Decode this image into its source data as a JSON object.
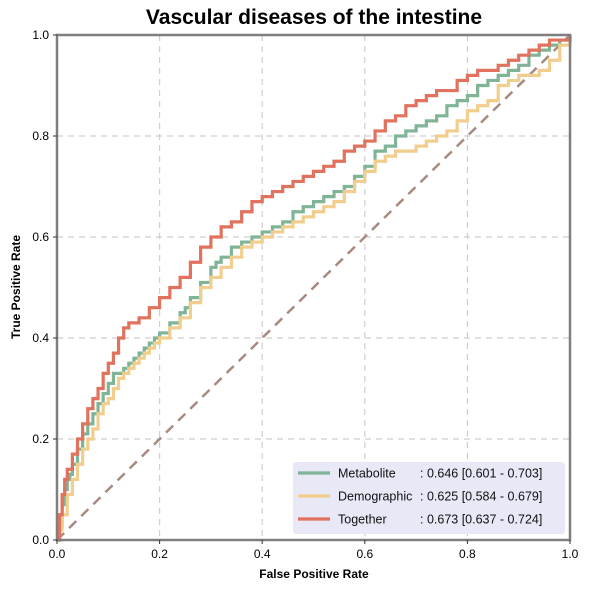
{
  "chart_data": {
    "type": "line",
    "title": "Vascular diseases of the intestine",
    "xlabel": "False Positive Rate",
    "ylabel": "True Positive Rate",
    "xlim": [
      0,
      1
    ],
    "ylim": [
      0,
      1
    ],
    "xticks": [
      "0.0",
      "0.2",
      "0.4",
      "0.6",
      "0.8",
      "1.0"
    ],
    "yticks": [
      "0.0",
      "0.2",
      "0.4",
      "0.6",
      "0.8",
      "1.0"
    ],
    "grid": true,
    "legend_position": "bottom-right",
    "series": [
      {
        "name": "Metabolite",
        "legend_name": "Metabolite     ",
        "legend_auc": ": 0.646 [0.601 - 0.703]",
        "color": "#7fb596",
        "x": [
          0,
          0.005,
          0.01,
          0.015,
          0.02,
          0.025,
          0.03,
          0.04,
          0.05,
          0.06,
          0.07,
          0.08,
          0.09,
          0.1,
          0.11,
          0.12,
          0.13,
          0.14,
          0.15,
          0.16,
          0.17,
          0.18,
          0.19,
          0.2,
          0.22,
          0.24,
          0.25,
          0.26,
          0.28,
          0.3,
          0.31,
          0.32,
          0.34,
          0.36,
          0.38,
          0.4,
          0.42,
          0.44,
          0.46,
          0.48,
          0.5,
          0.52,
          0.54,
          0.56,
          0.58,
          0.6,
          0.62,
          0.64,
          0.66,
          0.68,
          0.7,
          0.72,
          0.74,
          0.76,
          0.78,
          0.8,
          0.82,
          0.84,
          0.86,
          0.88,
          0.9,
          0.92,
          0.94,
          0.96,
          0.98,
          1.0
        ],
        "y": [
          0,
          0.03,
          0.07,
          0.1,
          0.12,
          0.13,
          0.15,
          0.18,
          0.21,
          0.23,
          0.25,
          0.27,
          0.29,
          0.31,
          0.33,
          0.33,
          0.34,
          0.35,
          0.36,
          0.37,
          0.38,
          0.39,
          0.4,
          0.41,
          0.43,
          0.45,
          0.46,
          0.48,
          0.51,
          0.54,
          0.55,
          0.56,
          0.58,
          0.59,
          0.6,
          0.61,
          0.62,
          0.63,
          0.65,
          0.66,
          0.67,
          0.68,
          0.69,
          0.7,
          0.72,
          0.74,
          0.77,
          0.78,
          0.8,
          0.81,
          0.82,
          0.83,
          0.84,
          0.86,
          0.87,
          0.88,
          0.9,
          0.91,
          0.92,
          0.93,
          0.94,
          0.96,
          0.97,
          0.98,
          0.99,
          1.0
        ]
      },
      {
        "name": "Demographic",
        "legend_name": "Demographic",
        "legend_auc": ": 0.625 [0.584 - 0.679]",
        "color": "#f2ce8e",
        "x": [
          0,
          0.005,
          0.01,
          0.02,
          0.03,
          0.04,
          0.05,
          0.06,
          0.07,
          0.08,
          0.09,
          0.1,
          0.11,
          0.12,
          0.13,
          0.14,
          0.15,
          0.16,
          0.17,
          0.18,
          0.19,
          0.2,
          0.22,
          0.24,
          0.26,
          0.28,
          0.3,
          0.32,
          0.34,
          0.36,
          0.38,
          0.4,
          0.42,
          0.44,
          0.46,
          0.48,
          0.5,
          0.52,
          0.54,
          0.56,
          0.58,
          0.6,
          0.62,
          0.64,
          0.66,
          0.68,
          0.7,
          0.72,
          0.74,
          0.76,
          0.78,
          0.8,
          0.82,
          0.84,
          0.86,
          0.88,
          0.9,
          0.92,
          0.94,
          0.96,
          0.98,
          1.0
        ],
        "y": [
          0,
          0.02,
          0.05,
          0.09,
          0.12,
          0.15,
          0.18,
          0.2,
          0.22,
          0.25,
          0.27,
          0.28,
          0.3,
          0.32,
          0.33,
          0.34,
          0.35,
          0.36,
          0.37,
          0.38,
          0.39,
          0.4,
          0.42,
          0.44,
          0.47,
          0.5,
          0.52,
          0.54,
          0.56,
          0.58,
          0.59,
          0.6,
          0.61,
          0.62,
          0.63,
          0.64,
          0.65,
          0.66,
          0.67,
          0.69,
          0.71,
          0.73,
          0.75,
          0.76,
          0.77,
          0.77,
          0.78,
          0.79,
          0.8,
          0.81,
          0.83,
          0.85,
          0.86,
          0.87,
          0.9,
          0.91,
          0.92,
          0.92,
          0.93,
          0.95,
          0.98,
          1.0
        ]
      },
      {
        "name": "Together",
        "legend_name": "Together       ",
        "legend_auc": ": 0.673 [0.637 - 0.724]",
        "color": "#e0725e",
        "x": [
          0,
          0.005,
          0.01,
          0.015,
          0.02,
          0.03,
          0.04,
          0.05,
          0.06,
          0.07,
          0.08,
          0.09,
          0.1,
          0.11,
          0.12,
          0.13,
          0.14,
          0.16,
          0.18,
          0.2,
          0.22,
          0.24,
          0.26,
          0.28,
          0.3,
          0.32,
          0.34,
          0.36,
          0.38,
          0.4,
          0.42,
          0.44,
          0.46,
          0.48,
          0.5,
          0.52,
          0.54,
          0.56,
          0.58,
          0.6,
          0.62,
          0.64,
          0.66,
          0.68,
          0.7,
          0.72,
          0.74,
          0.76,
          0.78,
          0.8,
          0.82,
          0.84,
          0.86,
          0.88,
          0.9,
          0.92,
          0.94,
          0.96,
          0.98,
          1.0
        ],
        "y": [
          0,
          0.05,
          0.09,
          0.12,
          0.14,
          0.17,
          0.2,
          0.23,
          0.26,
          0.28,
          0.3,
          0.33,
          0.35,
          0.37,
          0.4,
          0.42,
          0.43,
          0.44,
          0.46,
          0.48,
          0.5,
          0.52,
          0.55,
          0.58,
          0.6,
          0.62,
          0.63,
          0.65,
          0.67,
          0.68,
          0.69,
          0.7,
          0.71,
          0.72,
          0.73,
          0.74,
          0.75,
          0.77,
          0.78,
          0.79,
          0.81,
          0.83,
          0.84,
          0.86,
          0.87,
          0.88,
          0.89,
          0.89,
          0.91,
          0.92,
          0.93,
          0.93,
          0.94,
          0.95,
          0.96,
          0.97,
          0.98,
          0.99,
          0.99,
          1.0
        ]
      }
    ],
    "reference_line": {
      "x": [
        0,
        1
      ],
      "y": [
        0,
        1
      ],
      "color": "#a88b80"
    }
  },
  "legend_background": "#e8e8f7",
  "frame_color": "#7f7f7f",
  "grid_color": "#cfcfcf"
}
